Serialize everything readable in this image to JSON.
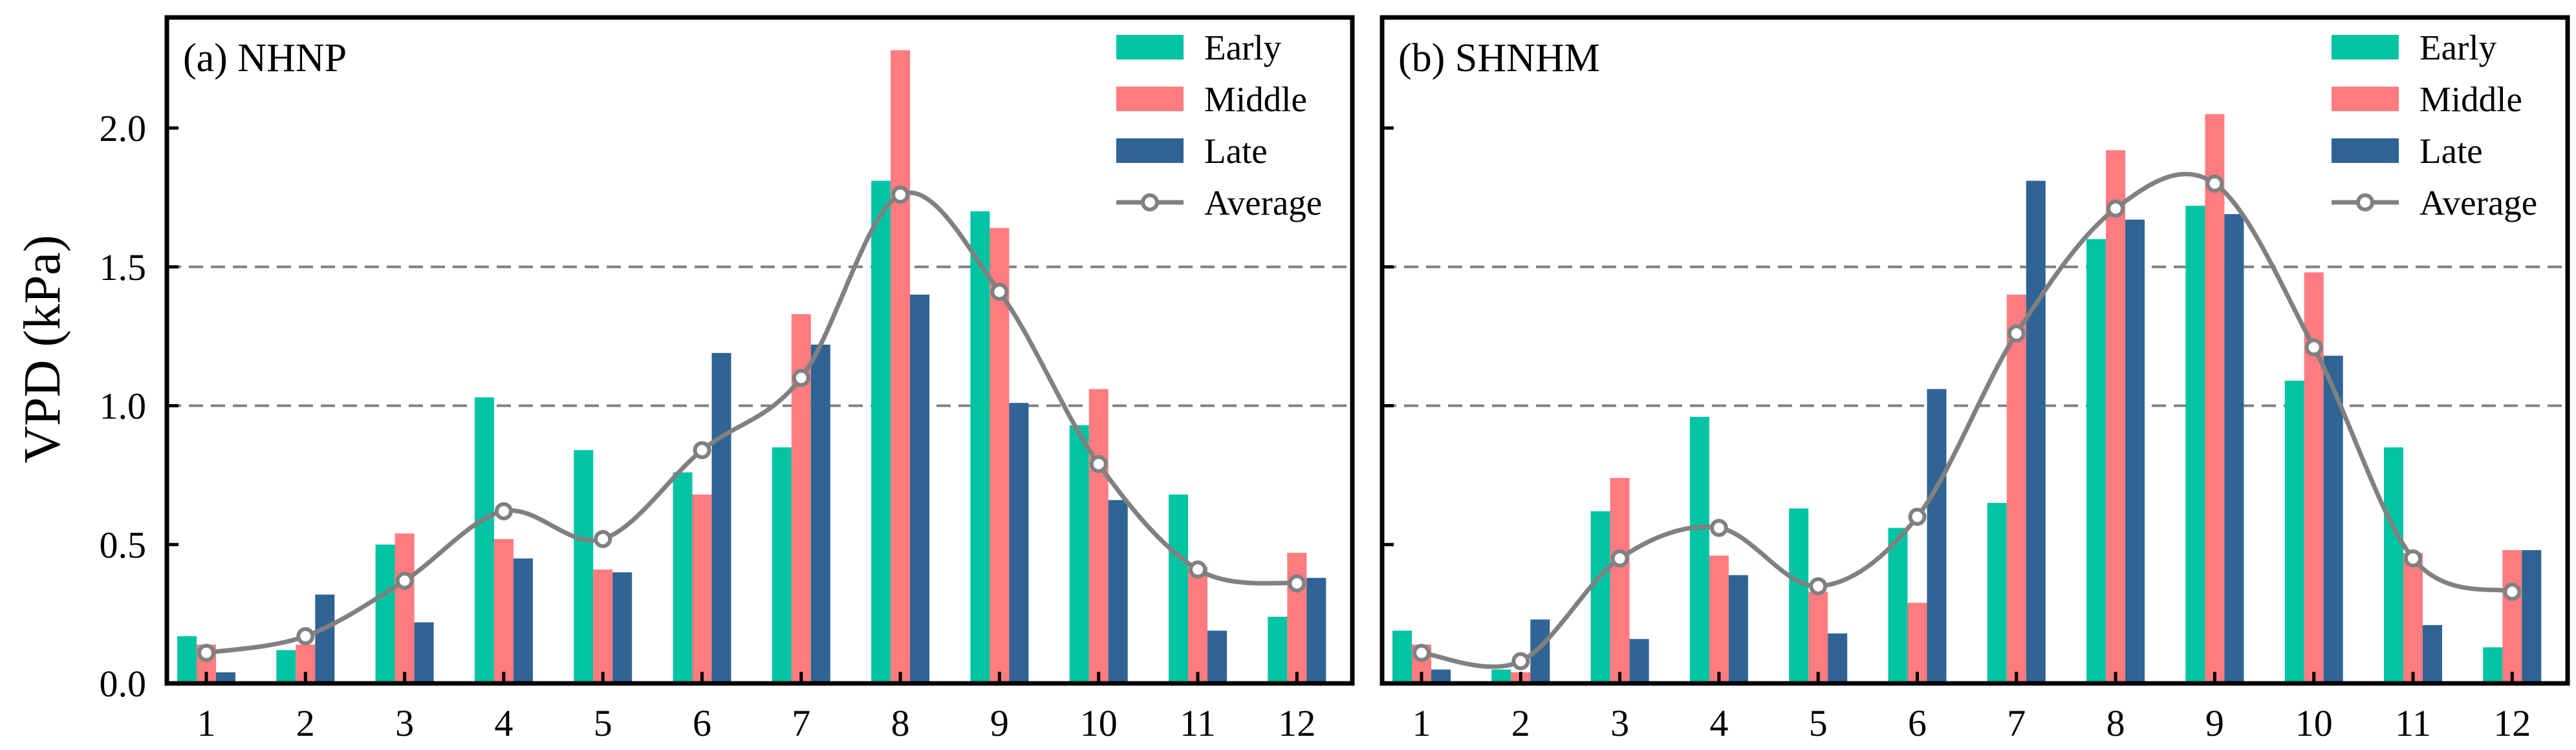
{
  "chart_data": {
    "type": "bar",
    "ylabel": "VPD (kPa)",
    "ylim": [
      0,
      2.4
    ],
    "yticks": [
      "0.0",
      "0.5",
      "1.0",
      "1.5",
      "2.0"
    ],
    "reference_lines": [
      1.0,
      1.5
    ],
    "categories": [
      "1",
      "2",
      "3",
      "4",
      "5",
      "6",
      "7",
      "8",
      "9",
      "10",
      "11",
      "12"
    ],
    "legend": {
      "position": "top-right",
      "items": [
        {
          "label": "Early",
          "color": "#00c4a3",
          "kind": "bar"
        },
        {
          "label": "Middle",
          "color": "#fe7b7f",
          "kind": "bar"
        },
        {
          "label": "Late",
          "color": "#2f6494",
          "kind": "bar"
        },
        {
          "label": "Average",
          "color": "#808080",
          "kind": "line-marker"
        }
      ]
    },
    "panels": [
      {
        "title": "(a) NHNP",
        "series": [
          {
            "name": "Early",
            "color": "#00c4a3",
            "values": [
              0.17,
              0.12,
              0.5,
              1.03,
              0.84,
              0.76,
              0.85,
              1.81,
              1.7,
              0.93,
              0.68,
              0.24
            ]
          },
          {
            "name": "Middle",
            "color": "#fe7b7f",
            "values": [
              0.14,
              0.14,
              0.54,
              0.52,
              0.41,
              0.68,
              1.33,
              2.28,
              1.64,
              1.06,
              0.42,
              0.47
            ]
          },
          {
            "name": "Late",
            "color": "#2f6494",
            "values": [
              0.04,
              0.32,
              0.22,
              0.45,
              0.4,
              1.19,
              1.22,
              1.4,
              1.01,
              0.66,
              0.19,
              0.38
            ]
          }
        ],
        "average": [
          0.11,
          0.17,
          0.37,
          0.62,
          0.52,
          0.84,
          1.1,
          1.76,
          1.41,
          0.79,
          0.41,
          0.36
        ]
      },
      {
        "title": "(b) SHNHM",
        "series": [
          {
            "name": "Early",
            "color": "#00c4a3",
            "values": [
              0.19,
              0.05,
              0.62,
              0.96,
              0.63,
              0.56,
              0.65,
              1.6,
              1.72,
              1.09,
              0.85,
              0.13
            ]
          },
          {
            "name": "Middle",
            "color": "#fe7b7f",
            "values": [
              0.14,
              0.04,
              0.74,
              0.46,
              0.33,
              0.29,
              1.4,
              1.92,
              2.05,
              1.48,
              0.47,
              0.48
            ]
          },
          {
            "name": "Late",
            "color": "#2f6494",
            "values": [
              0.05,
              0.23,
              0.16,
              0.39,
              0.18,
              1.06,
              1.81,
              1.67,
              1.69,
              1.18,
              0.21,
              0.48
            ]
          }
        ],
        "average": [
          0.11,
          0.08,
          0.45,
          0.56,
          0.35,
          0.6,
          1.26,
          1.71,
          1.8,
          1.21,
          0.45,
          0.33
        ]
      }
    ]
  }
}
